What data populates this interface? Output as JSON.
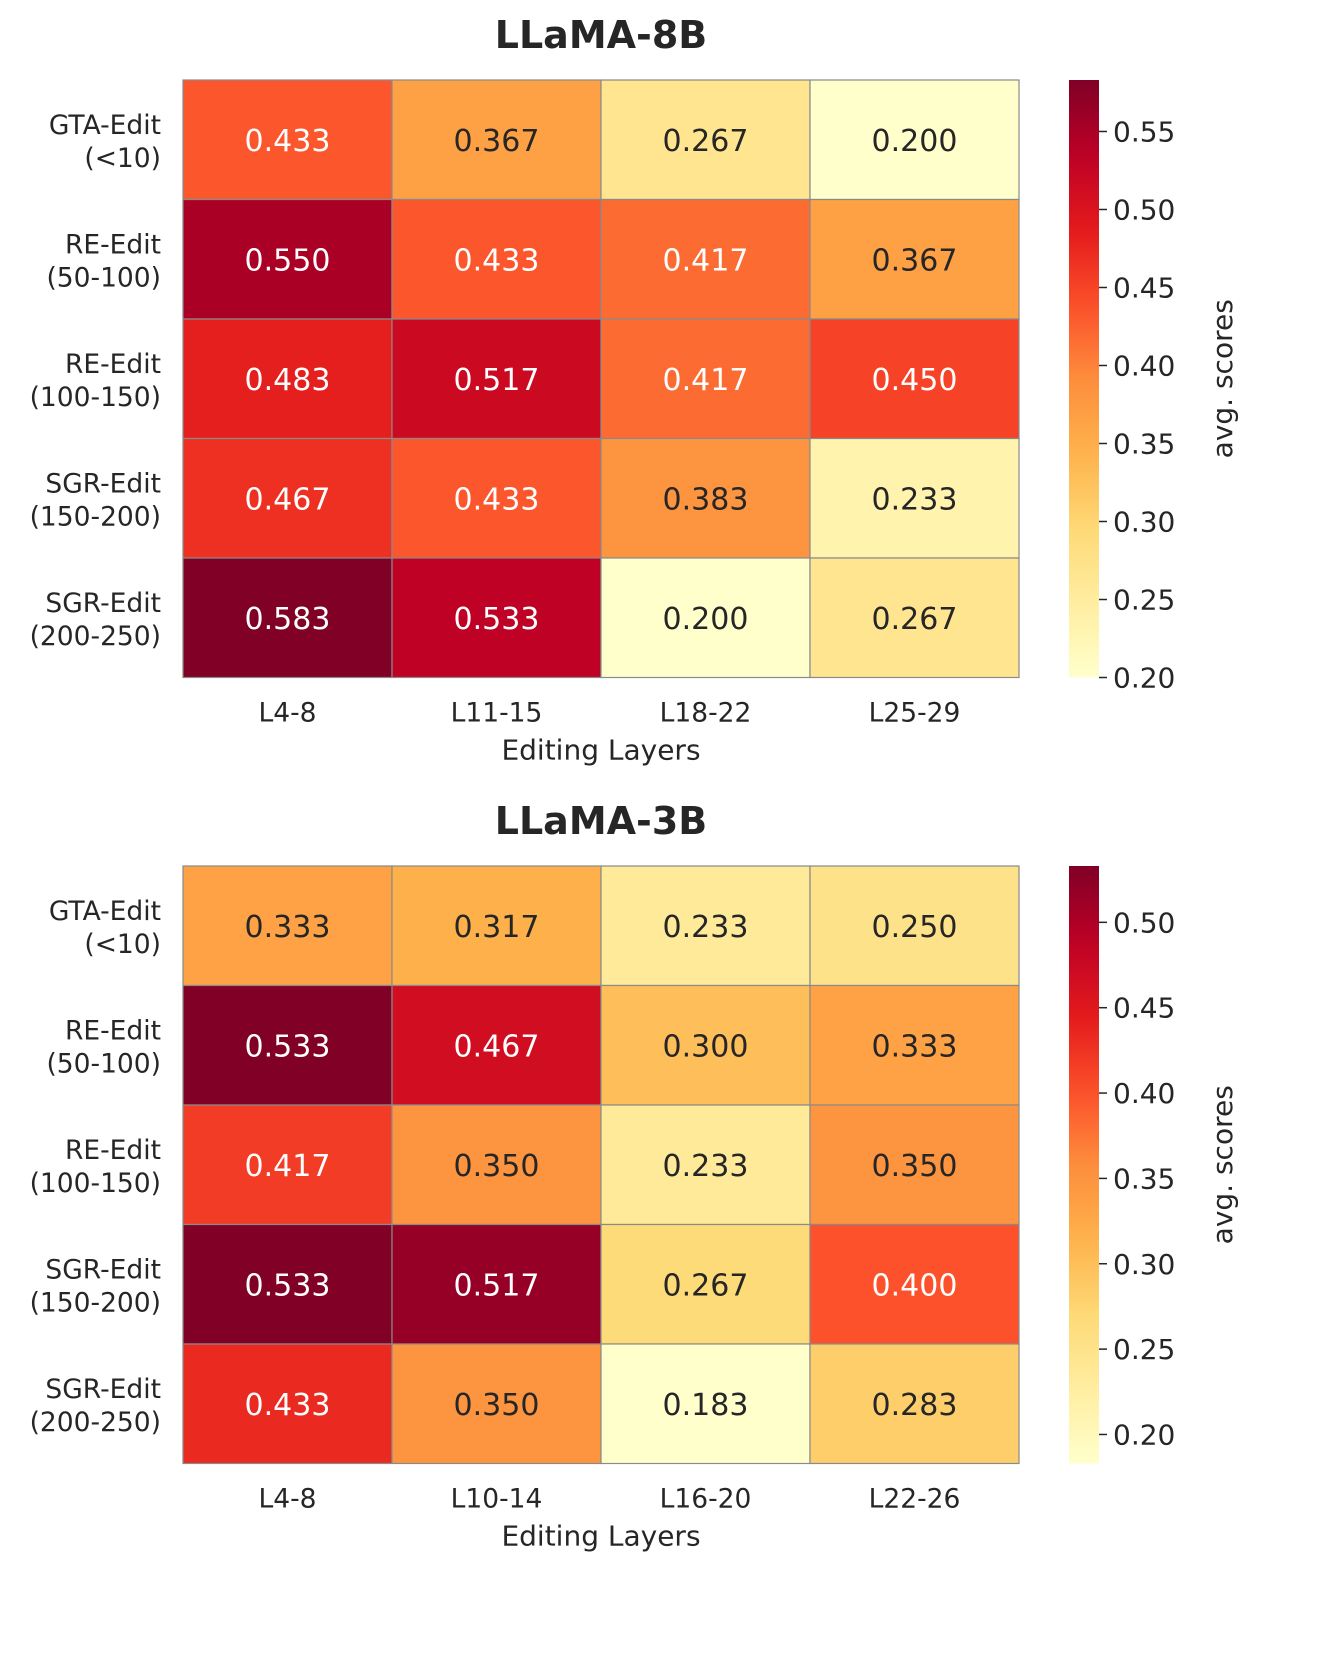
{
  "chart_data": [
    {
      "type": "heatmap",
      "title": "LLaMA-8B",
      "xlabel": "Editing Layers",
      "ylabel": "",
      "colorbar_label": "avg. scores",
      "colormap": "YlOrRd",
      "x_categories": [
        "L4-8",
        "L11-15",
        "L18-22",
        "L25-29"
      ],
      "y_categories": [
        [
          "GTA-Edit",
          "(<10)"
        ],
        [
          "RE-Edit",
          "(50-100)"
        ],
        [
          "RE-Edit",
          "(100-150)"
        ],
        [
          "SGR-Edit",
          "(150-200)"
        ],
        [
          "SGR-Edit",
          "(200-250)"
        ]
      ],
      "values": [
        [
          0.433,
          0.367,
          0.267,
          0.2
        ],
        [
          0.55,
          0.433,
          0.417,
          0.367
        ],
        [
          0.483,
          0.517,
          0.417,
          0.45
        ],
        [
          0.467,
          0.433,
          0.383,
          0.233
        ],
        [
          0.583,
          0.533,
          0.2,
          0.267
        ]
      ],
      "vmin": 0.2,
      "vmax": 0.583,
      "colorbar_ticks": [
        0.2,
        0.25,
        0.3,
        0.35,
        0.4,
        0.45,
        0.5,
        0.55
      ],
      "colorbar_tick_labels": [
        "0.20",
        "0.25",
        "0.30",
        "0.35",
        "0.40",
        "0.45",
        "0.50",
        "0.55"
      ]
    },
    {
      "type": "heatmap",
      "title": "LLaMA-3B",
      "xlabel": "Editing Layers",
      "ylabel": "",
      "colorbar_label": "avg. scores",
      "colormap": "YlOrRd",
      "x_categories": [
        "L4-8",
        "L10-14",
        "L16-20",
        "L22-26"
      ],
      "y_categories": [
        [
          "GTA-Edit",
          "(<10)"
        ],
        [
          "RE-Edit",
          "(50-100)"
        ],
        [
          "RE-Edit",
          "(100-150)"
        ],
        [
          "SGR-Edit",
          "(150-200)"
        ],
        [
          "SGR-Edit",
          "(200-250)"
        ]
      ],
      "values": [
        [
          0.333,
          0.317,
          0.233,
          0.25
        ],
        [
          0.533,
          0.467,
          0.3,
          0.333
        ],
        [
          0.417,
          0.35,
          0.233,
          0.35
        ],
        [
          0.533,
          0.517,
          0.267,
          0.4
        ],
        [
          0.433,
          0.35,
          0.183,
          0.283
        ]
      ],
      "vmin": 0.183,
      "vmax": 0.533,
      "colorbar_ticks": [
        0.2,
        0.25,
        0.3,
        0.35,
        0.4,
        0.45,
        0.5
      ],
      "colorbar_tick_labels": [
        "0.20",
        "0.25",
        "0.30",
        "0.35",
        "0.40",
        "0.45",
        "0.50"
      ]
    }
  ]
}
